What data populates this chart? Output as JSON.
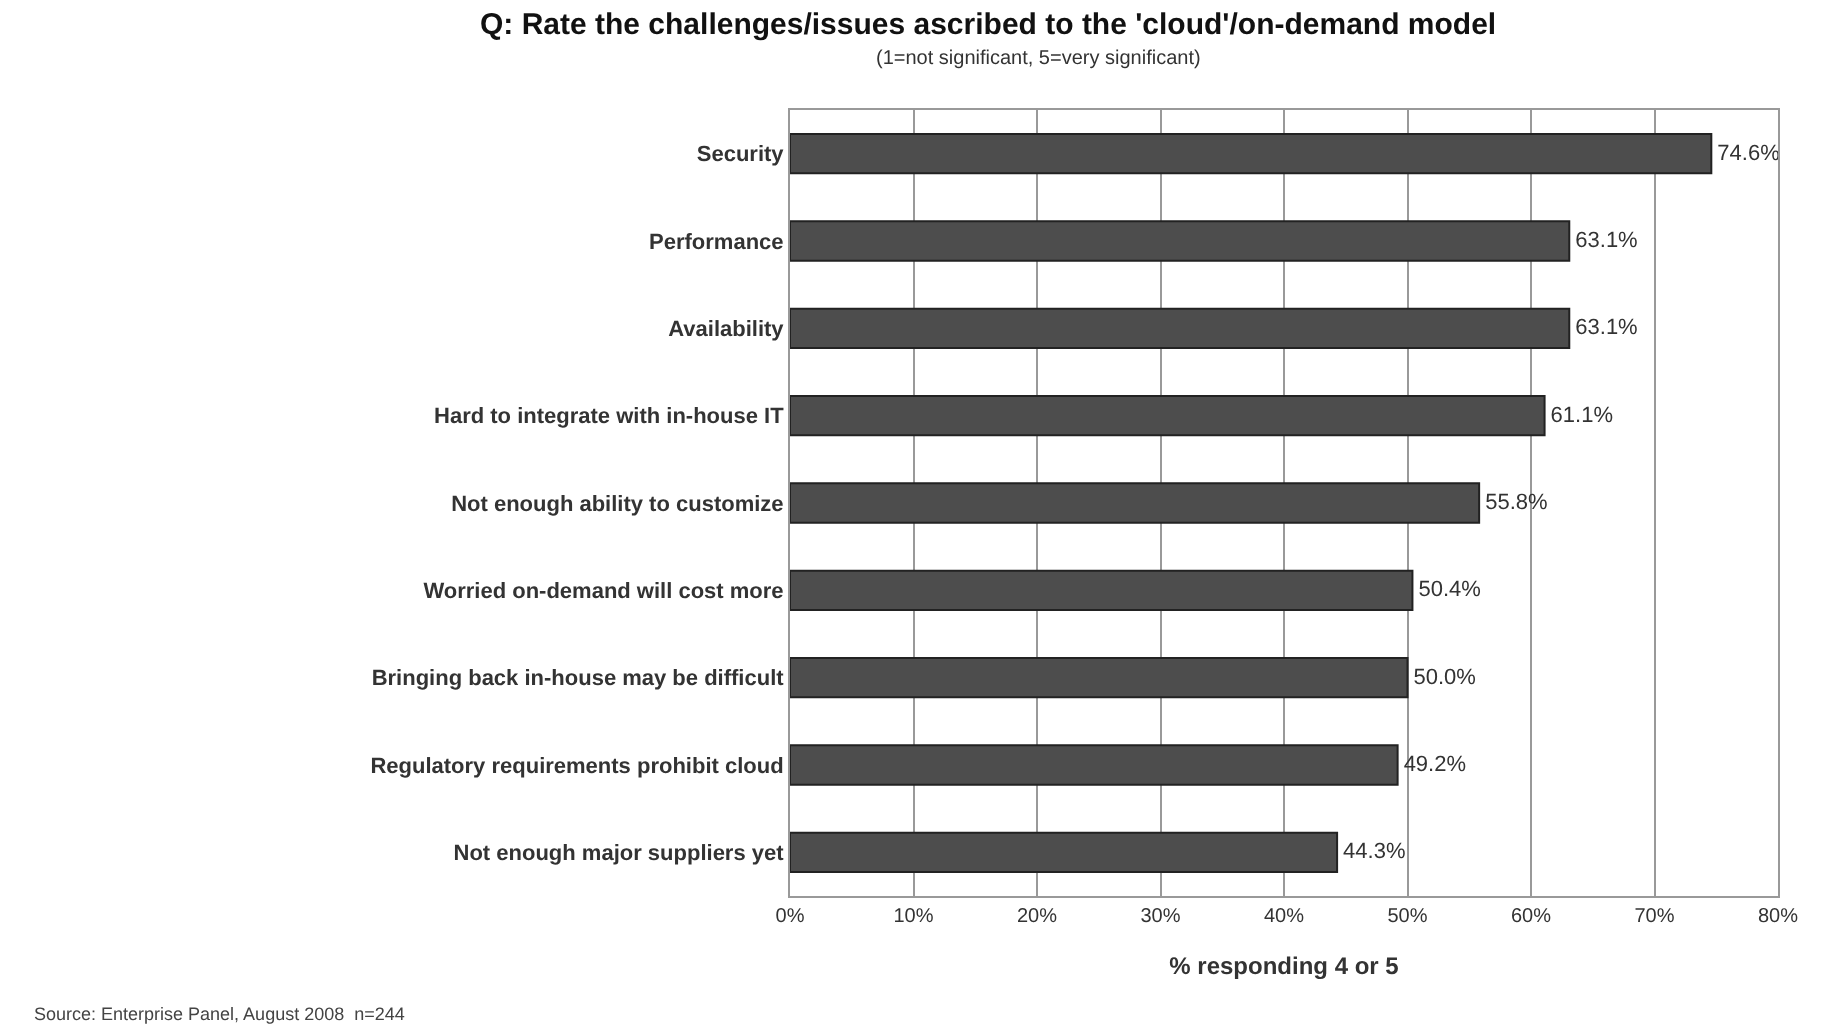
{
  "chart_data": {
    "type": "bar",
    "orientation": "horizontal",
    "title": "Q: Rate the challenges/issues ascribed to the 'cloud'/on-demand model",
    "subtitle": "(1=not significant, 5=very significant)",
    "xlabel": "% responding 4 or 5",
    "categories": [
      "Security",
      "Performance",
      "Availability",
      "Hard to integrate with in-house IT",
      "Not enough ability to customize",
      "Worried on-demand will cost more",
      "Bringing back in-house may be difficult",
      "Regulatory requirements prohibit cloud",
      "Not enough major suppliers yet"
    ],
    "values": [
      74.6,
      63.1,
      63.1,
      61.1,
      55.8,
      50.4,
      50.0,
      49.2,
      44.3
    ],
    "value_labels": [
      "74.6%",
      "63.1%",
      "63.1%",
      "61.1%",
      "55.8%",
      "50.4%",
      "50.0%",
      "49.2%",
      "44.3%"
    ],
    "color": "#4d4d4d",
    "xlim": [
      0,
      80
    ],
    "xticks": [
      {
        "value": 0,
        "label": "0%"
      },
      {
        "value": 10,
        "label": "10%"
      },
      {
        "value": 20,
        "label": "20%"
      },
      {
        "value": 30,
        "label": "30%"
      },
      {
        "value": 40,
        "label": "40%"
      },
      {
        "value": 50,
        "label": "50%"
      },
      {
        "value": 60,
        "label": "60%"
      },
      {
        "value": 70,
        "label": "70%"
      },
      {
        "value": 80,
        "label": "80%"
      }
    ],
    "grid": "x",
    "legend": false,
    "annotations": [
      "Source: Enterprise Panel, August 2008  n=244"
    ]
  }
}
